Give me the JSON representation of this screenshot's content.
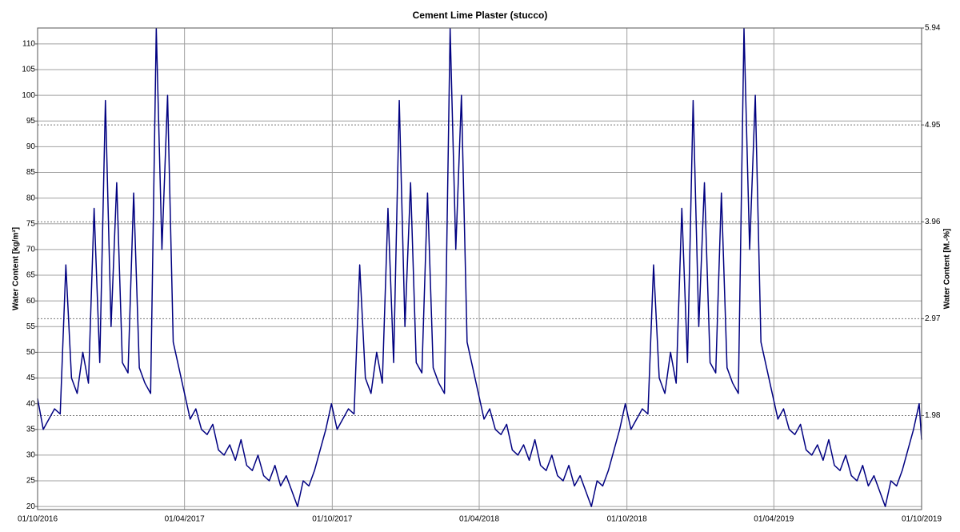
{
  "chart_data": {
    "type": "line",
    "title": "Cement Lime Plaster (stucco)",
    "y_label": "Water Content [kg/m³]",
    "y2_label": "Water Content [M.-%]",
    "xlim": [
      "01/10/2016",
      "01/10/2019"
    ],
    "xticks": [
      "01/10/2016",
      "01/04/2017",
      "01/10/2017",
      "01/04/2018",
      "01/10/2018",
      "01/04/2019",
      "01/10/2019"
    ],
    "ylim": [
      19.4,
      113.1
    ],
    "yticks": [
      20,
      25,
      30,
      35,
      40,
      45,
      50,
      55,
      60,
      65,
      70,
      75,
      80,
      85,
      90,
      95,
      100,
      105,
      110
    ],
    "y2lim": [
      1.02,
      5.94
    ],
    "y2ticks": [
      1.98,
      2.97,
      3.96,
      4.95,
      5.94
    ],
    "grid": true,
    "x": [
      "01/10/2016",
      "08/10/2016",
      "15/10/2016",
      "22/10/2016",
      "29/10/2016",
      "05/11/2016",
      "12/11/2016",
      "19/11/2016",
      "26/11/2016",
      "03/12/2016",
      "10/12/2016",
      "17/12/2016",
      "24/12/2016",
      "31/12/2016",
      "07/01/2017",
      "14/01/2017",
      "21/01/2017",
      "28/01/2017",
      "04/02/2017",
      "11/02/2017",
      "18/02/2017",
      "25/02/2017",
      "04/03/2017",
      "11/03/2017",
      "18/03/2017",
      "25/03/2017",
      "01/04/2017",
      "08/04/2017",
      "15/04/2017",
      "22/04/2017",
      "29/04/2017",
      "06/05/2017",
      "13/05/2017",
      "20/05/2017",
      "27/05/2017",
      "03/06/2017",
      "10/06/2017",
      "17/06/2017",
      "24/06/2017",
      "01/07/2017",
      "08/07/2017",
      "15/07/2017",
      "22/07/2017",
      "29/07/2017",
      "05/08/2017",
      "12/08/2017",
      "19/08/2017",
      "26/08/2017",
      "02/09/2017",
      "09/09/2017",
      "16/09/2017",
      "23/09/2017",
      "30/09/2017",
      "07/10/2017",
      "14/10/2017",
      "21/10/2017",
      "28/10/2017",
      "04/11/2017",
      "11/11/2017",
      "18/11/2017",
      "25/11/2017",
      "02/12/2017",
      "09/12/2017",
      "16/12/2017",
      "23/12/2017",
      "30/12/2017",
      "06/01/2018",
      "13/01/2018",
      "20/01/2018",
      "27/01/2018",
      "03/02/2018",
      "10/02/2018",
      "17/02/2018",
      "24/02/2018",
      "03/03/2018",
      "10/03/2018",
      "17/03/2018",
      "24/03/2018",
      "31/03/2018",
      "07/04/2018",
      "14/04/2018",
      "21/04/2018",
      "28/04/2018",
      "05/05/2018",
      "12/05/2018",
      "19/05/2018",
      "26/05/2018",
      "02/06/2018",
      "09/06/2018",
      "16/06/2018",
      "23/06/2018",
      "30/06/2018",
      "07/07/2018",
      "14/07/2018",
      "21/07/2018",
      "28/07/2018",
      "04/08/2018",
      "11/08/2018",
      "18/08/2018",
      "25/08/2018",
      "01/09/2018",
      "08/09/2018",
      "15/09/2018",
      "22/09/2018",
      "29/09/2018",
      "06/10/2018",
      "13/10/2018",
      "20/10/2018",
      "27/10/2018",
      "03/11/2018",
      "10/11/2018",
      "17/11/2018",
      "24/11/2018",
      "01/12/2018",
      "08/12/2018",
      "15/12/2018",
      "22/12/2018",
      "29/12/2018",
      "05/01/2019",
      "12/01/2019",
      "19/01/2019",
      "26/01/2019",
      "02/02/2019",
      "09/02/2019",
      "16/02/2019",
      "23/02/2019",
      "02/03/2019",
      "09/03/2019",
      "16/03/2019",
      "23/03/2019",
      "30/03/2019",
      "06/04/2019",
      "13/04/2019",
      "20/04/2019",
      "27/04/2019",
      "04/05/2019",
      "11/05/2019",
      "18/05/2019",
      "25/05/2019",
      "01/06/2019",
      "08/06/2019",
      "15/06/2019",
      "22/06/2019",
      "29/06/2019",
      "06/07/2019",
      "13/07/2019",
      "20/07/2019",
      "27/07/2019",
      "03/08/2019",
      "10/08/2019",
      "17/08/2019",
      "24/08/2019",
      "31/08/2019",
      "07/09/2019",
      "14/09/2019",
      "21/09/2019",
      "28/09/2019",
      "01/10/2019"
    ],
    "series": [
      {
        "color": "#000080",
        "values": [
          41,
          35,
          37,
          39,
          38,
          67,
          45,
          42,
          50,
          44,
          78,
          48,
          99,
          55,
          83,
          48,
          46,
          81,
          47,
          44,
          42,
          113,
          70,
          100,
          52,
          47,
          42,
          37,
          39,
          35,
          34,
          36,
          31,
          30,
          32,
          29,
          33,
          28,
          27,
          30,
          26,
          25,
          28,
          24,
          26,
          23,
          20,
          25,
          24,
          27,
          31,
          35,
          40,
          35,
          37,
          39,
          38,
          67,
          45,
          42,
          50,
          44,
          78,
          48,
          99,
          55,
          83,
          48,
          46,
          81,
          47,
          44,
          42,
          113,
          70,
          100,
          52,
          47,
          42,
          37,
          39,
          35,
          34,
          36,
          31,
          30,
          32,
          29,
          33,
          28,
          27,
          30,
          26,
          25,
          28,
          24,
          26,
          23,
          20,
          25,
          24,
          27,
          31,
          35,
          40,
          35,
          37,
          39,
          38,
          67,
          45,
          42,
          50,
          44,
          78,
          48,
          99,
          55,
          83,
          48,
          46,
          81,
          47,
          44,
          42,
          113,
          70,
          100,
          52,
          47,
          42,
          37,
          39,
          35,
          34,
          36,
          31,
          30,
          32,
          29,
          33,
          28,
          27,
          30,
          26,
          25,
          28,
          24,
          26,
          23,
          20,
          25,
          24,
          27,
          31,
          35,
          40,
          33
        ]
      }
    ]
  }
}
